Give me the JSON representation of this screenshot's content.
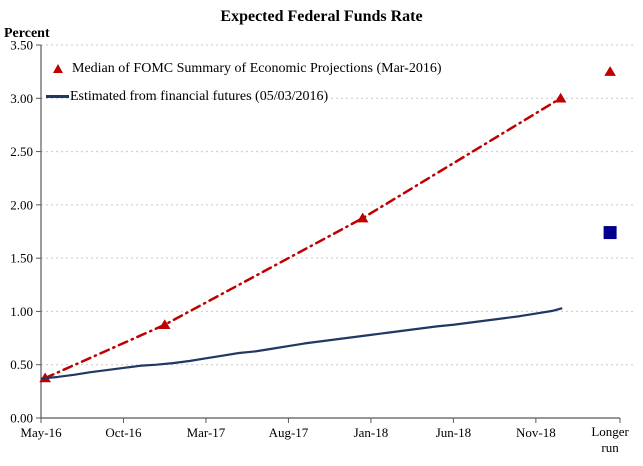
{
  "chart_data": {
    "type": "line",
    "title": "Expected Federal Funds Rate",
    "ylabel": "Percent",
    "ylim": [
      0.0,
      3.5
    ],
    "ytick_step": 0.5,
    "ytick_labels": [
      "0.00",
      "0.50",
      "1.00",
      "1.50",
      "2.00",
      "2.50",
      "3.00",
      "3.50"
    ],
    "grid": "horizontal dotted gridlines at each 0.50",
    "legend_position": "inside top-left",
    "x_unit": "months since May-2016",
    "xlim": [
      0,
      35.1
    ],
    "xticks": [
      {
        "m": 0,
        "label": "May-16"
      },
      {
        "m": 5,
        "label": "Oct-16"
      },
      {
        "m": 10,
        "label": "Mar-17"
      },
      {
        "m": 15,
        "label": "Aug-17"
      },
      {
        "m": 20,
        "label": "Jan-18"
      },
      {
        "m": 25,
        "label": "Jun-18"
      },
      {
        "m": 30,
        "label": "Nov-18"
      },
      {
        "m": 35.1,
        "label": ""
      }
    ],
    "longer_run_category": {
      "label_line1": "Longer",
      "label_line2": "run",
      "m": 34.5
    },
    "series": [
      {
        "name": "Median of FOMC Summary of Economic Projections (Mar-2016)",
        "color": "#C00000",
        "line_style": "dash-dot",
        "marker": "triangle",
        "points": [
          [
            0.25,
            0.375
          ],
          [
            7.5,
            0.875
          ],
          [
            19.5,
            1.875
          ],
          [
            31.5,
            3.0
          ]
        ],
        "marker_points": [
          [
            0.25,
            0.375
          ],
          [
            7.5,
            0.875
          ],
          [
            19.5,
            1.875
          ],
          [
            31.5,
            3.0
          ]
        ],
        "longer_run_value": 3.25
      },
      {
        "name": "Estimated from financial futures (05/03/2016)",
        "color": "#1F3864",
        "line_style": "solid",
        "marker": "none",
        "points": [
          [
            0,
            0.37
          ],
          [
            1,
            0.385
          ],
          [
            2,
            0.405
          ],
          [
            3,
            0.43
          ],
          [
            4,
            0.45
          ],
          [
            5,
            0.47
          ],
          [
            6,
            0.49
          ],
          [
            7,
            0.5
          ],
          [
            8,
            0.515
          ],
          [
            9,
            0.535
          ],
          [
            10,
            0.56
          ],
          [
            11,
            0.585
          ],
          [
            12,
            0.61
          ],
          [
            13,
            0.625
          ],
          [
            14,
            0.65
          ],
          [
            15,
            0.675
          ],
          [
            16,
            0.7
          ],
          [
            17,
            0.72
          ],
          [
            18,
            0.74
          ],
          [
            19,
            0.76
          ],
          [
            20,
            0.78
          ],
          [
            21,
            0.8
          ],
          [
            22,
            0.82
          ],
          [
            23,
            0.84
          ],
          [
            24,
            0.86
          ],
          [
            25,
            0.875
          ],
          [
            26,
            0.895
          ],
          [
            27,
            0.915
          ],
          [
            28,
            0.935
          ],
          [
            29,
            0.955
          ],
          [
            30,
            0.98
          ],
          [
            31,
            1.005
          ],
          [
            31.6,
            1.03
          ]
        ],
        "longer_run_value": 1.74,
        "longer_run_marker": "square",
        "longer_run_marker_color": "#00008B"
      }
    ],
    "colors": {
      "fomc_red": "#C00000",
      "futures_navy": "#1F3864",
      "longer_run_square_blue": "#00008B",
      "gridline_gray": "#C9C9C9",
      "axis_gray": "#595959"
    }
  },
  "legend": {
    "items": [
      {
        "label": "Median of FOMC Summary of Economic Projections (Mar-2016)"
      },
      {
        "label": "Estimated from financial futures (05/03/2016)"
      }
    ]
  }
}
